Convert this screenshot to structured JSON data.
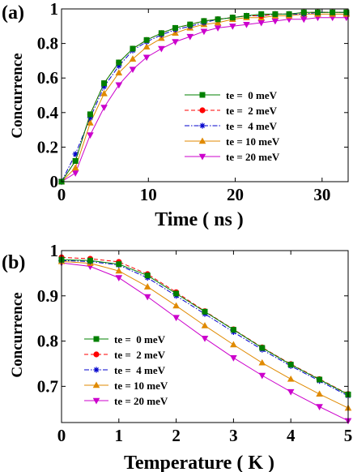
{
  "chart_data": [
    {
      "type": "line",
      "panel_label": "(a)",
      "xlabel": "Time ( ns )",
      "ylabel": "Concurrence",
      "xlim": [
        0,
        33
      ],
      "ylim": [
        0,
        1
      ],
      "xticks": [
        "0",
        "10",
        "20",
        "30"
      ],
      "yticks": [
        "0",
        "0.2",
        "0.4",
        "0.6",
        "0.8",
        "1"
      ],
      "legend_position": "right",
      "grid": false,
      "x": [
        0,
        1.6,
        3.3,
        4.9,
        6.6,
        8.2,
        9.8,
        11.5,
        13.1,
        14.8,
        16.4,
        18.0,
        19.7,
        21.3,
        23.0,
        24.6,
        26.2,
        27.9,
        29.5,
        31.2,
        32.8
      ],
      "series": [
        {
          "name": "te =  0 meV",
          "color": "#008000",
          "marker": "square",
          "dash": "solid",
          "values": [
            0,
            0.12,
            0.39,
            0.57,
            0.69,
            0.77,
            0.82,
            0.86,
            0.89,
            0.91,
            0.93,
            0.94,
            0.95,
            0.96,
            0.97,
            0.97,
            0.97,
            0.98,
            0.98,
            0.98,
            0.98
          ]
        },
        {
          "name": "te =  2 meV",
          "color": "#ff0000",
          "marker": "circle",
          "dash": "dashed",
          "values": [
            0,
            0.12,
            0.39,
            0.57,
            0.69,
            0.77,
            0.82,
            0.86,
            0.89,
            0.91,
            0.93,
            0.94,
            0.95,
            0.96,
            0.96,
            0.97,
            0.97,
            0.98,
            0.98,
            0.98,
            0.98
          ]
        },
        {
          "name": "te =  4 meV",
          "color": "#0000cc",
          "marker": "star",
          "dash": "dashdot",
          "values": [
            0,
            0.16,
            0.37,
            0.55,
            0.67,
            0.76,
            0.81,
            0.85,
            0.88,
            0.9,
            0.92,
            0.94,
            0.95,
            0.96,
            0.96,
            0.97,
            0.97,
            0.97,
            0.98,
            0.98,
            0.98
          ]
        },
        {
          "name": "te = 10 meV",
          "color": "#e08a00",
          "marker": "triangle-up",
          "dash": "solid",
          "values": [
            0,
            0.08,
            0.34,
            0.51,
            0.63,
            0.71,
            0.78,
            0.83,
            0.86,
            0.89,
            0.91,
            0.92,
            0.94,
            0.95,
            0.95,
            0.96,
            0.96,
            0.97,
            0.97,
            0.97,
            0.97
          ]
        },
        {
          "name": "te = 20 meV",
          "color": "#cc00cc",
          "marker": "triangle-down",
          "dash": "solid",
          "values": [
            0,
            0.05,
            0.27,
            0.43,
            0.56,
            0.65,
            0.72,
            0.77,
            0.81,
            0.84,
            0.87,
            0.89,
            0.9,
            0.91,
            0.92,
            0.93,
            0.94,
            0.94,
            0.95,
            0.95,
            0.95
          ]
        }
      ]
    },
    {
      "type": "line",
      "panel_label": "(b)",
      "xlabel": "Temperature ( K )",
      "ylabel": "Concurrence",
      "xlim": [
        0,
        5
      ],
      "ylim": [
        0.62,
        1.0
      ],
      "xticks": [
        "0",
        "1",
        "2",
        "3",
        "4",
        "5"
      ],
      "yticks": [
        "0.7",
        "0.8",
        "0.9",
        "1"
      ],
      "legend_position": "bottom-left",
      "grid": false,
      "x": [
        0,
        0.5,
        1.0,
        1.5,
        2.0,
        2.5,
        3.0,
        3.5,
        4.0,
        4.5,
        5.0
      ],
      "series": [
        {
          "name": "te =  0 meV",
          "color": "#008000",
          "marker": "square",
          "dash": "solid",
          "values": [
            0.98,
            0.978,
            0.97,
            0.945,
            0.905,
            0.865,
            0.825,
            0.785,
            0.748,
            0.715,
            0.682
          ]
        },
        {
          "name": "te =  2 meV",
          "color": "#ff0000",
          "marker": "circle",
          "dash": "dashed",
          "values": [
            0.985,
            0.982,
            0.975,
            0.948,
            0.908,
            0.866,
            0.826,
            0.786,
            0.749,
            0.716,
            0.683
          ]
        },
        {
          "name": "te =  4 meV",
          "color": "#0000cc",
          "marker": "star",
          "dash": "dashdot",
          "values": [
            0.978,
            0.976,
            0.968,
            0.94,
            0.9,
            0.86,
            0.82,
            0.781,
            0.745,
            0.712,
            0.679
          ]
        },
        {
          "name": "te = 10 meV",
          "color": "#e08a00",
          "marker": "triangle-up",
          "dash": "solid",
          "values": [
            0.976,
            0.972,
            0.955,
            0.92,
            0.878,
            0.834,
            0.792,
            0.752,
            0.716,
            0.683,
            0.652
          ]
        },
        {
          "name": "te = 20 meV",
          "color": "#cc00cc",
          "marker": "triangle-down",
          "dash": "solid",
          "values": [
            0.973,
            0.965,
            0.94,
            0.898,
            0.852,
            0.806,
            0.763,
            0.724,
            0.688,
            0.655,
            0.624
          ]
        }
      ]
    }
  ]
}
